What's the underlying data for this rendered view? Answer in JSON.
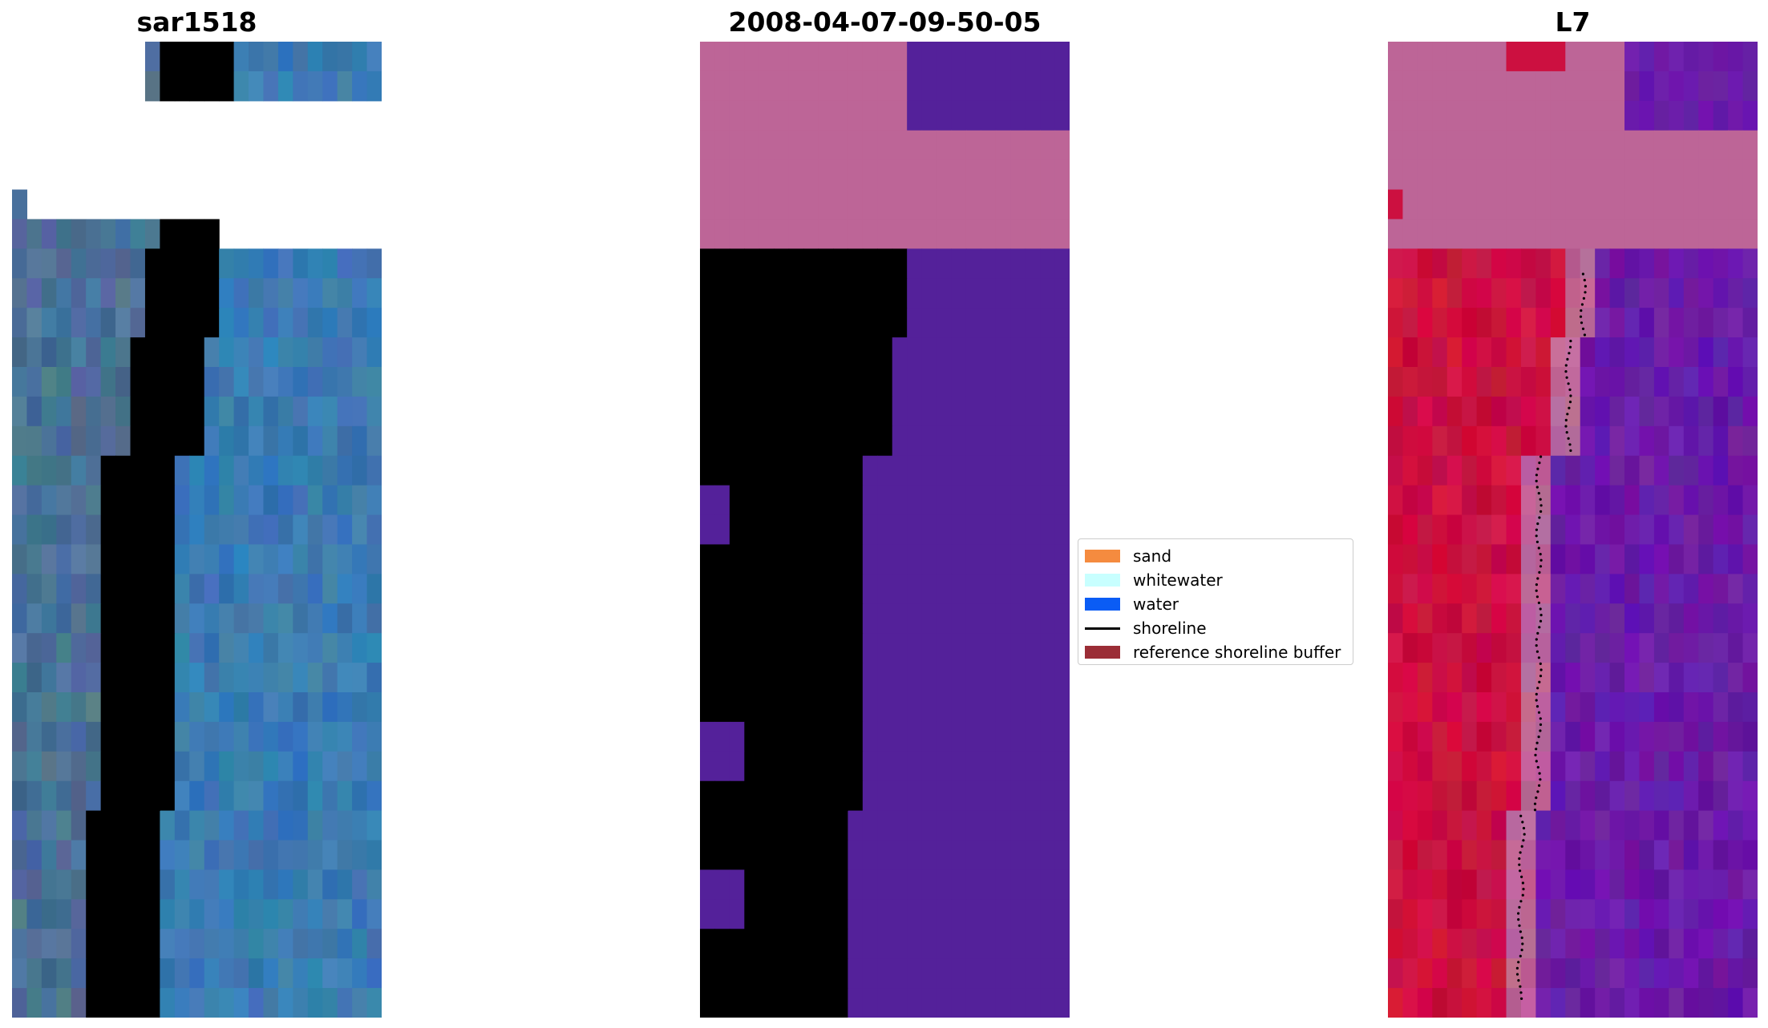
{
  "panels": [
    {
      "title": "sar1518",
      "kind": "rgb"
    },
    {
      "title": "2008-04-07-09-50-05",
      "kind": "classified"
    },
    {
      "title": "L7",
      "kind": "mndwi"
    }
  ],
  "legend": {
    "items": [
      {
        "label": "sand",
        "color": "#f58b3f",
        "type": "patch"
      },
      {
        "label": "whitewater",
        "color": "#c8ffff",
        "type": "patch"
      },
      {
        "label": "water",
        "color": "#0a5cf5",
        "type": "patch"
      },
      {
        "label": "shoreline",
        "color": "#000000",
        "type": "line"
      },
      {
        "label": "reference shoreline buffer",
        "color": "#9b2d36",
        "type": "patch"
      }
    ]
  },
  "colors": {
    "rgb_water": "#3a7bb3",
    "rgb_sand_white": "#eef0f6",
    "rgb_land_dark": "#4a7296",
    "class_pink": "#bd6597",
    "class_purple": "#54219a",
    "class_maroon": "#7a2a6a",
    "mndwi_red": "#cc1040",
    "mndwi_purple": "#6a1aa8",
    "mndwi_pink": "#bd6597"
  }
}
